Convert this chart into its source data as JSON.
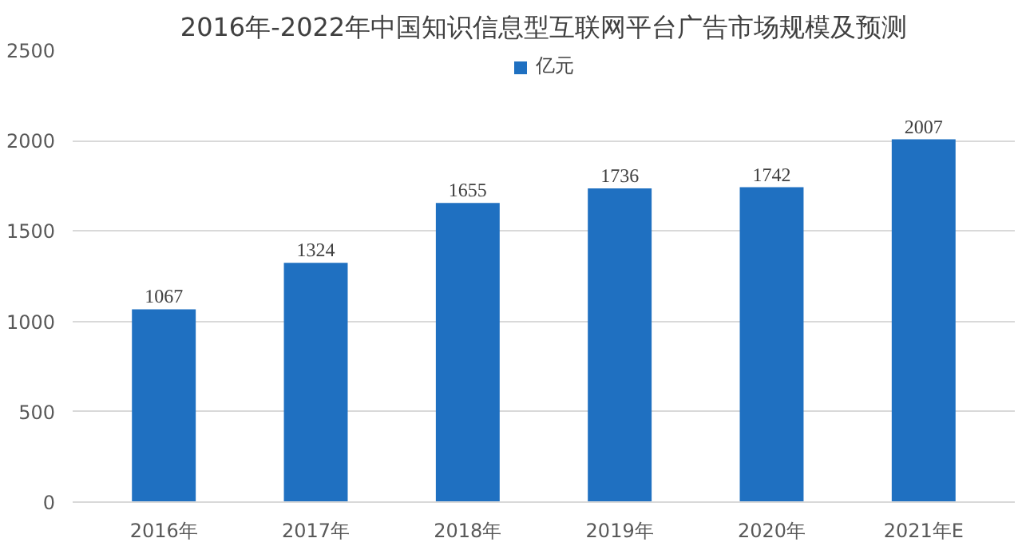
{
  "chart_data": {
    "type": "bar",
    "title": "2016年-2022年中国知识信息型互联网平台广告市场规模及预测",
    "categories": [
      "2016年",
      "2017年",
      "2018年",
      "2019年",
      "2020年",
      "2021年E"
    ],
    "series": [
      {
        "name": "亿元",
        "color": "#1f70c1",
        "values": [
          1067,
          1324,
          1655,
          1736,
          1742,
          2007
        ]
      }
    ],
    "ylim": [
      0,
      2500
    ],
    "yticks": [
      0,
      500,
      1000,
      1500,
      2000,
      2500
    ],
    "grid": "y",
    "legend": "top",
    "data_labels": true
  }
}
